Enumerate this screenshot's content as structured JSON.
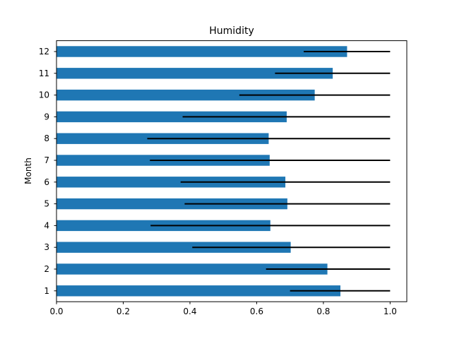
{
  "chart_data": {
    "type": "bar",
    "orientation": "horizontal",
    "title": "Humidity",
    "xlabel": "",
    "ylabel": "Month",
    "xlim": [
      0.0,
      1.05
    ],
    "x_ticks": [
      "0.0",
      "0.2",
      "0.4",
      "0.6",
      "0.8",
      "1.0"
    ],
    "categories": [
      "1",
      "2",
      "3",
      "4",
      "5",
      "6",
      "7",
      "8",
      "9",
      "10",
      "11",
      "12"
    ],
    "values": [
      0.851,
      0.812,
      0.702,
      0.641,
      0.692,
      0.686,
      0.639,
      0.636,
      0.69,
      0.774,
      0.828,
      0.871
    ],
    "error_low": [
      0.7,
      0.628,
      0.407,
      0.282,
      0.384,
      0.372,
      0.28,
      0.272,
      0.378,
      0.548,
      0.655,
      0.741
    ],
    "error_high": [
      1.0,
      1.0,
      1.0,
      1.0,
      1.0,
      1.0,
      1.0,
      1.0,
      1.0,
      1.0,
      1.0,
      1.0
    ],
    "grid": false,
    "colors": {
      "bar": "#1f77b4",
      "error": "#000000"
    }
  }
}
